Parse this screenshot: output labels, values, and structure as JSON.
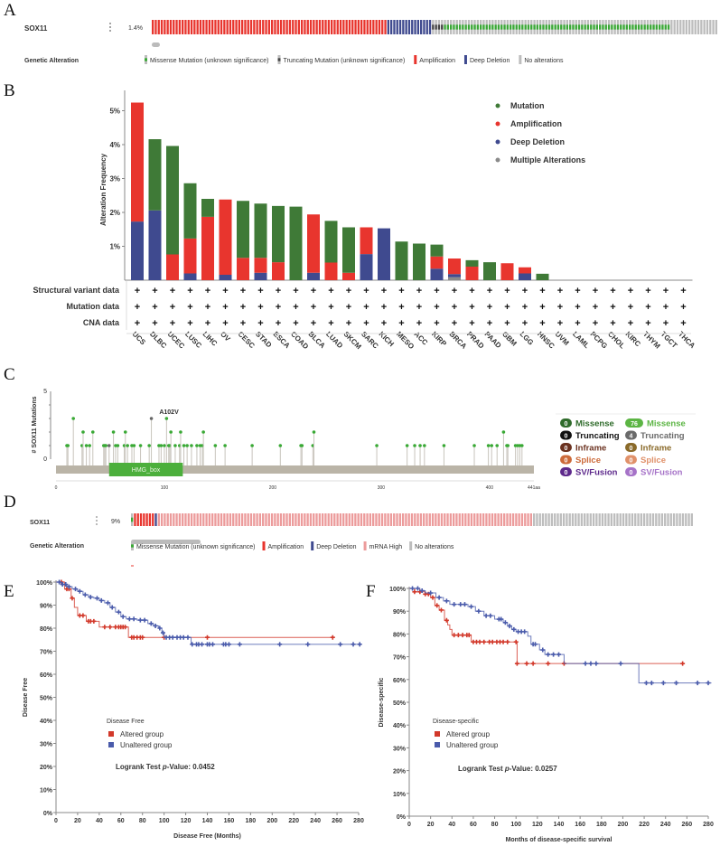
{
  "panels": {
    "a": "A",
    "b": "B",
    "c": "C",
    "d": "D",
    "e": "E",
    "f": "F"
  },
  "oncoprint_a": {
    "gene": "SOX11",
    "percent": "1.4%",
    "legend_title": "Genetic Alteration",
    "legend": [
      {
        "label": "Missense Mutation (unknown significance)",
        "type": "missense"
      },
      {
        "label": "Truncating Mutation (unknown significance)",
        "type": "truncating"
      },
      {
        "label": "Amplification",
        "type": "amplification"
      },
      {
        "label": "Deep Deletion",
        "type": "deletion"
      },
      {
        "label": "No alterations",
        "type": "none"
      }
    ],
    "cases": [
      {
        "type": "amplification",
        "count": 79
      },
      {
        "type": "deletion",
        "count": 15
      },
      {
        "type": "truncating",
        "count": 4
      },
      {
        "type": "missense",
        "count": 76
      },
      {
        "type": "none",
        "count": 16
      }
    ]
  },
  "oncoprint_d": {
    "gene": "SOX11",
    "percent": "9%",
    "legend_title": "Genetic Alteration",
    "legend": [
      {
        "label": "Missense Mutation (unknown significance)",
        "type": "missense"
      },
      {
        "label": "Amplification",
        "type": "amplification"
      },
      {
        "label": "Deep Deletion",
        "type": "deletion"
      },
      {
        "label": "mRNA High",
        "type": "mrna_high"
      },
      {
        "label": "No alterations",
        "type": "none"
      }
    ],
    "cases": [
      {
        "type": "missense",
        "count": 1
      },
      {
        "type": "amplification",
        "count": 7
      },
      {
        "type": "deletion",
        "count": 1
      },
      {
        "type": "mrna_high",
        "count": 126
      },
      {
        "type": "none",
        "count": 54
      }
    ]
  },
  "colors": {
    "mutation": "#3f7a37",
    "amplification": "#e8352e",
    "deletion": "#3f4a8f",
    "multiple": "#8a8a8a",
    "missense": "#39a935",
    "truncating": "#444444",
    "none": "#bdbdbd",
    "mrna_high": "#ec9b9b",
    "altered": "#d2382a",
    "unaltered": "#4a5bab",
    "protein": "#bab4a7",
    "domain": "#4caf3c"
  },
  "profile_rows": [
    "Structural variant data",
    "Mutation data",
    "CNA data"
  ],
  "profile_mark": "+",
  "mutation_legend": {
    "germline_like": [
      {
        "count": "0",
        "label": "Missense",
        "color": "#2f6b2b"
      },
      {
        "count": "0",
        "label": "Truncating",
        "color": "#111111"
      },
      {
        "count": "0",
        "label": "Inframe",
        "color": "#6b3220"
      },
      {
        "count": "0",
        "label": "Splice",
        "color": "#cc6a3a"
      },
      {
        "count": "0",
        "label": "SV/Fusion",
        "color": "#5e2a8c"
      }
    ],
    "somatic": [
      {
        "count": "76",
        "label": "Missense",
        "color": "#5cb544"
      },
      {
        "count": "4",
        "label": "Truncating",
        "color": "#6a6a6a"
      },
      {
        "count": "0",
        "label": "Inframe",
        "color": "#8a6a2a"
      },
      {
        "count": "0",
        "label": "Splice",
        "color": "#e0916a"
      },
      {
        "count": "0",
        "label": "SV/Fusion",
        "color": "#a673c8"
      }
    ]
  },
  "chart_data": [
    {
      "type": "bar",
      "stacked": true,
      "ylabel": "Alteration Frequency",
      "ylim": [
        0,
        5.6
      ],
      "yticks": [
        "1%",
        "2%",
        "3%",
        "4%",
        "5%"
      ],
      "categories": [
        "UCS",
        "DLBC",
        "UCEC",
        "LUSC",
        "LIHC",
        "OV",
        "CESC",
        "STAD",
        "ESCA",
        "COAD",
        "BLCA",
        "LUAD",
        "SKCM",
        "SARC",
        "KICH",
        "MESO",
        "ACC",
        "KIRP",
        "BRCA",
        "PRAD",
        "PAAD",
        "GBM",
        "LGG",
        "HNSC",
        "UVM",
        "LAML",
        "PCPG",
        "CHOL",
        "KIRC",
        "THYM",
        "TGCT",
        "THCA"
      ],
      "legend_placement": "top-right",
      "series": [
        {
          "name": "Multiple Alterations",
          "key": "multiple",
          "values": [
            0,
            0,
            0,
            0,
            0,
            0,
            0,
            0,
            0,
            0,
            0,
            0,
            0,
            0,
            0,
            0,
            0,
            0,
            0.09,
            0,
            0,
            0,
            0,
            0,
            0,
            0,
            0,
            0,
            0,
            0,
            0,
            0
          ]
        },
        {
          "name": "Deep Deletion",
          "key": "deletion",
          "values": [
            1.73,
            2.06,
            0,
            0.2,
            0,
            0.16,
            0,
            0.22,
            0,
            0,
            0.22,
            0,
            0,
            0.77,
            1.53,
            0,
            0,
            0.34,
            0.09,
            0,
            0,
            0,
            0.2,
            0,
            0,
            0,
            0,
            0,
            0,
            0,
            0,
            0
          ]
        },
        {
          "name": "Amplification",
          "key": "amplification",
          "values": [
            3.51,
            0,
            0.76,
            1.03,
            1.87,
            2.22,
            0.66,
            0.44,
            0.53,
            0,
            1.72,
            0.52,
            0.22,
            0.79,
            0,
            0,
            0,
            0.36,
            0.46,
            0.4,
            0,
            0.5,
            0.18,
            0,
            0,
            0,
            0,
            0,
            0,
            0,
            0,
            0
          ]
        },
        {
          "name": "Mutation",
          "key": "mutation",
          "values": [
            0,
            2.1,
            3.2,
            1.63,
            0.53,
            0,
            1.68,
            1.6,
            1.66,
            2.17,
            0,
            1.23,
            1.34,
            0,
            0,
            1.14,
            1.08,
            0.35,
            0,
            0.19,
            0.53,
            0,
            0,
            0.19,
            0,
            0,
            0,
            0,
            0,
            0,
            0,
            0
          ]
        }
      ],
      "legend_order": [
        "mutation",
        "amplification",
        "deletion",
        "multiple"
      ]
    },
    {
      "type": "lollipop",
      "ylabel": "# SOX11 Mutations",
      "ylim": [
        0,
        5
      ],
      "yticks": [
        "0",
        "5"
      ],
      "xlim": [
        0,
        441
      ],
      "xticks": [
        "0",
        "100",
        "200",
        "300",
        "400"
      ],
      "xend_label": "441aa",
      "domain": {
        "name": "HMG_box",
        "start": 49,
        "end": 117
      },
      "annotation": {
        "label": "A102V",
        "position": 102
      },
      "mutations": [
        [
          10,
          1
        ],
        [
          11,
          1
        ],
        [
          16,
          3
        ],
        [
          24,
          1
        ],
        [
          25,
          2
        ],
        [
          28,
          1
        ],
        [
          31,
          1
        ],
        [
          34,
          2
        ],
        [
          44,
          1
        ],
        [
          45,
          1
        ],
        [
          46,
          1
        ],
        [
          49,
          1,
          "truncating"
        ],
        [
          53,
          2
        ],
        [
          55,
          1
        ],
        [
          57,
          1
        ],
        [
          63,
          1
        ],
        [
          64,
          2
        ],
        [
          66,
          1
        ],
        [
          70,
          1
        ],
        [
          72,
          1
        ],
        [
          78,
          1
        ],
        [
          86,
          1
        ],
        [
          88,
          3,
          "truncating"
        ],
        [
          95,
          1
        ],
        [
          97,
          1
        ],
        [
          100,
          1
        ],
        [
          102,
          3
        ],
        [
          104,
          1
        ],
        [
          105,
          1
        ],
        [
          106,
          2
        ],
        [
          110,
          1
        ],
        [
          114,
          1
        ],
        [
          115,
          2
        ],
        [
          118,
          1
        ],
        [
          121,
          1
        ],
        [
          125,
          1
        ],
        [
          130,
          1
        ],
        [
          133,
          1
        ],
        [
          135,
          1
        ],
        [
          136,
          2
        ],
        [
          147,
          1
        ],
        [
          156,
          1
        ],
        [
          181,
          1
        ],
        [
          207,
          1
        ],
        [
          226,
          1
        ],
        [
          227,
          1
        ],
        [
          237,
          1
        ],
        [
          238,
          2
        ],
        [
          296,
          1
        ],
        [
          324,
          1
        ],
        [
          331,
          1
        ],
        [
          336,
          1
        ],
        [
          340,
          1
        ],
        [
          358,
          1
        ],
        [
          386,
          1
        ],
        [
          399,
          1
        ],
        [
          402,
          1
        ],
        [
          407,
          1
        ],
        [
          413,
          2
        ],
        [
          416,
          1
        ],
        [
          417,
          1
        ],
        [
          424,
          1
        ],
        [
          426,
          1
        ],
        [
          428,
          1
        ],
        [
          430,
          1
        ]
      ]
    },
    {
      "type": "line",
      "subtype": "kaplan-meier",
      "ylabel": "Disease Free",
      "xlabel": "Disease Free (Months)",
      "xlim": [
        0,
        280
      ],
      "ylim": [
        0,
        100
      ],
      "xticks": [
        "0",
        "20",
        "40",
        "60",
        "80",
        "100",
        "120",
        "140",
        "160",
        "180",
        "200",
        "220",
        "240",
        "260",
        "280"
      ],
      "yticks": [
        "0%",
        "10%",
        "20%",
        "30%",
        "40%",
        "50%",
        "60%",
        "70%",
        "80%",
        "90%",
        "100%"
      ],
      "legend_title": "Disease Free",
      "pvalue_prefix": "Logrank Test ",
      "pvalue_p": "p",
      "pvalue_suffix": "-Value: 0.0452",
      "series": [
        {
          "name": "Altered group",
          "key": "altered",
          "steps": [
            [
              0,
              100
            ],
            [
              8,
              97
            ],
            [
              14,
              93
            ],
            [
              17,
              89
            ],
            [
              20,
              85.5
            ],
            [
              28,
              83
            ],
            [
              40,
              80.5
            ],
            [
              67,
              76
            ]
          ],
          "end": 256,
          "censored": [
            5,
            10,
            12,
            15,
            22,
            25,
            30,
            32,
            35,
            45,
            50,
            55,
            58,
            60,
            62,
            64,
            70,
            72,
            75,
            78,
            80,
            100,
            140,
            256
          ]
        },
        {
          "name": "Unaltered group",
          "key": "unaltered",
          "steps": [
            [
              0,
              100
            ],
            [
              5,
              99
            ],
            [
              10,
              98
            ],
            [
              15,
              97
            ],
            [
              20,
              96
            ],
            [
              25,
              94.5
            ],
            [
              30,
              93.5
            ],
            [
              35,
              93
            ],
            [
              40,
              92
            ],
            [
              45,
              91
            ],
            [
              50,
              89
            ],
            [
              55,
              87
            ],
            [
              60,
              85
            ],
            [
              65,
              84
            ],
            [
              75,
              83.5
            ],
            [
              85,
              82
            ],
            [
              90,
              81
            ],
            [
              95,
              80
            ],
            [
              98,
              78
            ],
            [
              100,
              76
            ],
            [
              125,
              73
            ]
          ],
          "end": 281,
          "censored": [
            3,
            6,
            9,
            12,
            18,
            22,
            27,
            32,
            38,
            42,
            48,
            52,
            58,
            62,
            68,
            72,
            78,
            82,
            88,
            92,
            96,
            99,
            102,
            105,
            108,
            112,
            115,
            118,
            122,
            126,
            130,
            132,
            135,
            140,
            142,
            145,
            155,
            157,
            160,
            170,
            207,
            233,
            263,
            275,
            281
          ]
        }
      ]
    },
    {
      "type": "line",
      "subtype": "kaplan-meier",
      "ylabel": "Disease-specific",
      "xlabel": "Months of disease-specific survival",
      "xlim": [
        0,
        280
      ],
      "ylim": [
        0,
        100
      ],
      "xticks": [
        "0",
        "20",
        "40",
        "60",
        "80",
        "100",
        "120",
        "140",
        "160",
        "180",
        "200",
        "220",
        "240",
        "260",
        "280"
      ],
      "yticks": [
        "0%",
        "10%",
        "20%",
        "30%",
        "40%",
        "50%",
        "60%",
        "70%",
        "80%",
        "90%",
        "100%"
      ],
      "legend_title": "Disease-specific",
      "pvalue_prefix": "Logrank Test ",
      "pvalue_p": "p",
      "pvalue_suffix": "-Value: 0.0257",
      "series": [
        {
          "name": "Altered group",
          "key": "altered",
          "steps": [
            [
              0,
              100
            ],
            [
              5,
              98.5
            ],
            [
              15,
              97.5
            ],
            [
              20,
              96
            ],
            [
              24,
              92.5
            ],
            [
              28,
              90.5
            ],
            [
              33,
              86
            ],
            [
              36,
              84
            ],
            [
              38,
              82
            ],
            [
              40,
              79.5
            ],
            [
              58,
              76.5
            ],
            [
              101,
              67
            ]
          ],
          "end": 256,
          "censored": [
            5,
            10,
            15,
            18,
            22,
            26,
            30,
            35,
            42,
            46,
            50,
            54,
            56,
            60,
            63,
            66,
            70,
            75,
            78,
            82,
            85,
            88,
            92,
            100,
            101,
            110,
            116,
            130,
            145,
            256
          ]
        },
        {
          "name": "Unaltered group",
          "key": "unaltered",
          "steps": [
            [
              0,
              100
            ],
            [
              10,
              99
            ],
            [
              15,
              98
            ],
            [
              25,
              96
            ],
            [
              32,
              94.5
            ],
            [
              38,
              93
            ],
            [
              55,
              92
            ],
            [
              62,
              90
            ],
            [
              70,
              88
            ],
            [
              80,
              86.5
            ],
            [
              88,
              85
            ],
            [
              92,
              83.5
            ],
            [
              96,
              82
            ],
            [
              100,
              81
            ],
            [
              111,
              79
            ],
            [
              114,
              75.5
            ],
            [
              122,
              73
            ],
            [
              127,
              71
            ],
            [
              145,
              67
            ],
            [
              215,
              58.5
            ]
          ],
          "end": 283,
          "censored": [
            3,
            8,
            12,
            20,
            28,
            35,
            42,
            48,
            52,
            58,
            65,
            72,
            76,
            84,
            86,
            90,
            94,
            98,
            102,
            105,
            108,
            116,
            118,
            125,
            130,
            135,
            140,
            165,
            170,
            175,
            198,
            222,
            227,
            238,
            250,
            270,
            280
          ]
        }
      ]
    }
  ]
}
